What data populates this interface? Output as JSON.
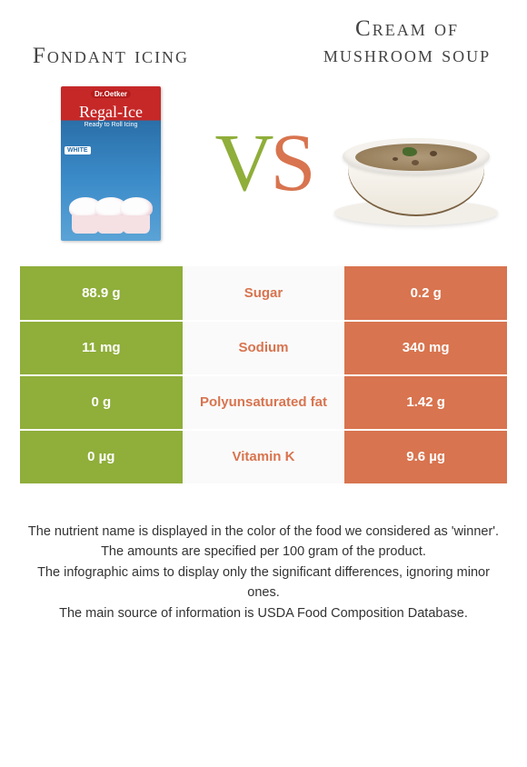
{
  "titles": {
    "left": "Fondant icing",
    "right": "Cream of mushroom soup"
  },
  "vs": {
    "v": "V",
    "s": "S"
  },
  "fondant": {
    "brand": "Dr.Oetker",
    "label": "Regal-Ice",
    "sub": "Ready to Roll Icing",
    "tag": "WHITE"
  },
  "colors": {
    "green": "#8fae3a",
    "orange": "#d8744f",
    "mid_bg": "#fafafa"
  },
  "table": {
    "rows": [
      {
        "left": "88.9 g",
        "mid": "Sugar",
        "mid_color": "orange",
        "right": "0.2 g"
      },
      {
        "left": "11 mg",
        "mid": "Sodium",
        "mid_color": "orange",
        "right": "340 mg"
      },
      {
        "left": "0 g",
        "mid": "Polyunsaturated fat",
        "mid_color": "orange",
        "right": "1.42 g"
      },
      {
        "left": "0 µg",
        "mid": "Vitamin K",
        "mid_color": "orange",
        "right": "9.6 µg"
      }
    ]
  },
  "notes": [
    "The nutrient name is displayed in the color of the food we considered as 'winner'.",
    "The amounts are specified per 100 gram of the product.",
    "The infographic aims to display only the significant differences, ignoring minor ones.",
    "The main source of information is USDA Food Composition Database."
  ]
}
